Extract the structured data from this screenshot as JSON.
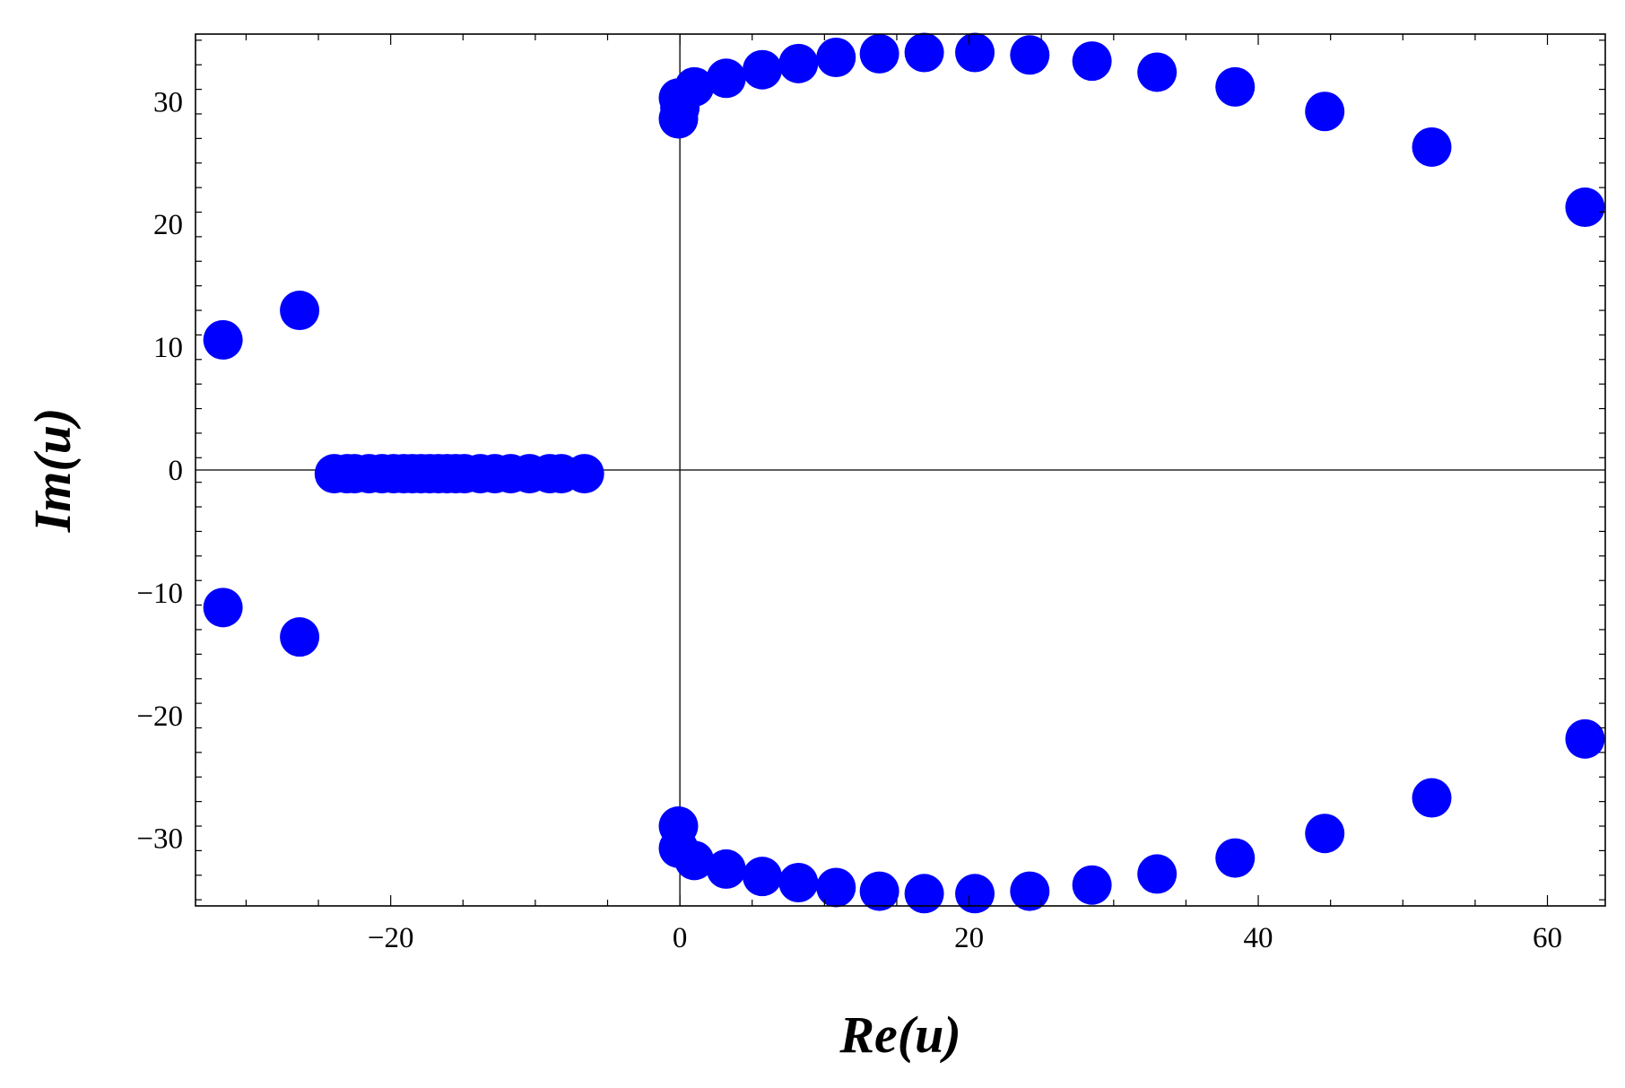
{
  "chart_data": {
    "type": "scatter",
    "xlabel": "Re(u)",
    "ylabel": "Im(u)",
    "xlim": [
      -33.5,
      64
    ],
    "ylim": [
      -35.5,
      35.5
    ],
    "x_ticks": [
      -20,
      0,
      20,
      40,
      60
    ],
    "y_ticks": [
      -30,
      -20,
      -10,
      0,
      10,
      20,
      30
    ],
    "x_tick_labels": [
      "−20",
      "0",
      "20",
      "40",
      "60"
    ],
    "y_tick_labels": [
      "−30",
      "−20",
      "−10",
      "0",
      "10",
      "20",
      "30"
    ],
    "axes_lines_at_zero": true,
    "grid": false,
    "legend": "none",
    "marker_color": "#0000ff",
    "series": [
      {
        "points": [
          [
            -31.6,
            10.6
          ],
          [
            -26.3,
            13.0
          ],
          [
            -31.6,
            -11.2
          ],
          [
            -26.3,
            -13.6
          ],
          [
            -23.9,
            -0.3
          ],
          [
            -23.0,
            -0.3
          ],
          [
            -22.5,
            -0.3
          ],
          [
            -21.5,
            -0.3
          ],
          [
            -20.6,
            -0.3
          ],
          [
            -19.8,
            -0.3
          ],
          [
            -19.1,
            -0.3
          ],
          [
            -18.5,
            -0.3
          ],
          [
            -17.9,
            -0.3
          ],
          [
            -17.3,
            -0.3
          ],
          [
            -16.7,
            -0.3
          ],
          [
            -16.1,
            -0.3
          ],
          [
            -15.5,
            -0.3
          ],
          [
            -14.9,
            -0.3
          ],
          [
            -13.8,
            -0.3
          ],
          [
            -12.8,
            -0.3
          ],
          [
            -11.7,
            -0.3
          ],
          [
            -10.4,
            -0.3
          ],
          [
            -9.0,
            -0.3
          ],
          [
            -8.2,
            -0.3
          ],
          [
            -6.6,
            -0.3
          ],
          [
            -0.1,
            30.3
          ],
          [
            0.0,
            29.5
          ],
          [
            -0.1,
            28.6
          ],
          [
            1.0,
            31.2
          ],
          [
            3.2,
            31.9
          ],
          [
            5.7,
            32.6
          ],
          [
            8.2,
            33.1
          ],
          [
            10.8,
            33.6
          ],
          [
            13.8,
            33.9
          ],
          [
            16.9,
            34.0
          ],
          [
            20.4,
            34.0
          ],
          [
            24.2,
            33.8
          ],
          [
            28.5,
            33.3
          ],
          [
            33.0,
            32.4
          ],
          [
            38.4,
            31.2
          ],
          [
            44.6,
            29.2
          ],
          [
            52.0,
            26.3
          ],
          [
            62.6,
            21.4
          ],
          [
            -0.1,
            -29.0
          ],
          [
            -0.1,
            -30.8
          ],
          [
            1.0,
            -31.8
          ],
          [
            3.2,
            -32.5
          ],
          [
            5.7,
            -33.1
          ],
          [
            8.2,
            -33.6
          ],
          [
            10.8,
            -34.0
          ],
          [
            13.8,
            -34.3
          ],
          [
            16.9,
            -34.5
          ],
          [
            20.4,
            -34.5
          ],
          [
            24.2,
            -34.3
          ],
          [
            28.5,
            -33.8
          ],
          [
            33.0,
            -32.9
          ],
          [
            38.4,
            -31.6
          ],
          [
            44.6,
            -29.6
          ],
          [
            52.0,
            -26.7
          ],
          [
            62.6,
            -21.9
          ]
        ]
      }
    ]
  }
}
